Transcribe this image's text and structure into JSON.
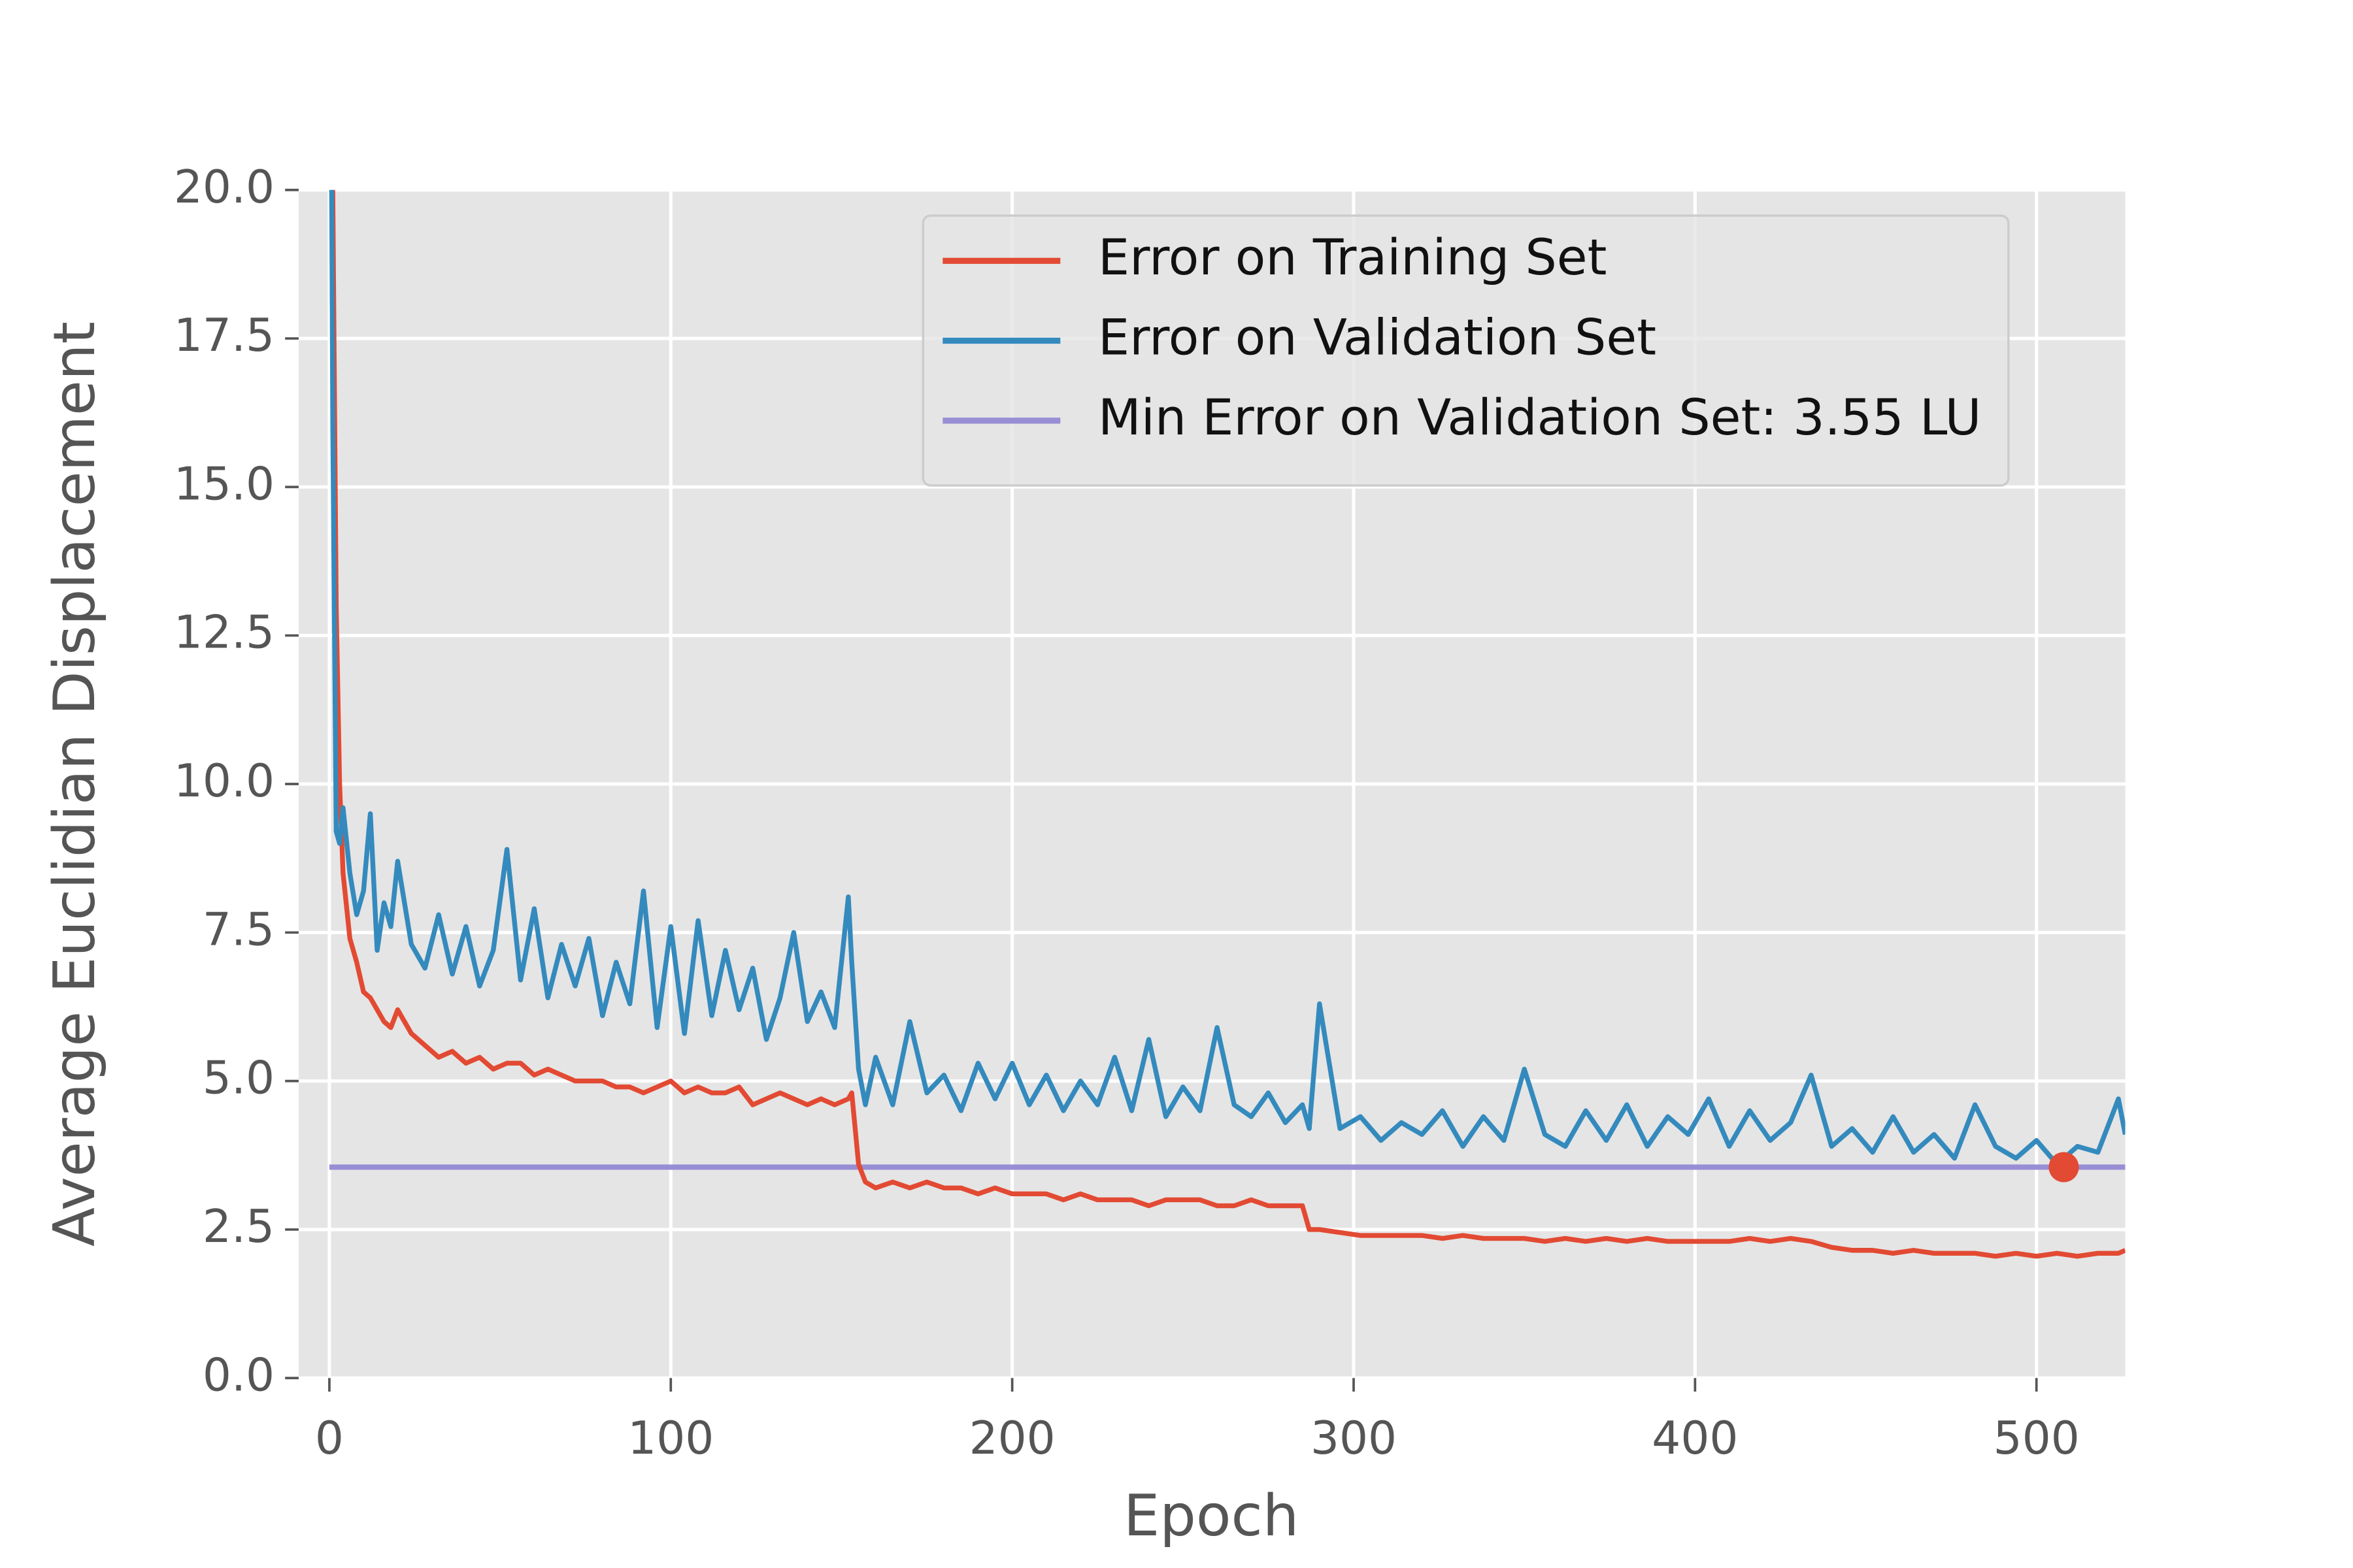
{
  "chart_data": {
    "type": "line",
    "xlabel": "Epoch",
    "ylabel": "Average Euclidian Displacement",
    "x": [
      0,
      1,
      2,
      3,
      4,
      6,
      8,
      10,
      12,
      14,
      16,
      18,
      20,
      24,
      28,
      32,
      36,
      40,
      44,
      48,
      52,
      56,
      60,
      64,
      68,
      72,
      76,
      80,
      84,
      88,
      92,
      96,
      100,
      104,
      108,
      112,
      116,
      120,
      124,
      128,
      132,
      136,
      140,
      144,
      148,
      152,
      153,
      155,
      157,
      160,
      165,
      170,
      175,
      180,
      185,
      190,
      195,
      200,
      205,
      210,
      215,
      220,
      225,
      230,
      235,
      240,
      245,
      250,
      255,
      260,
      265,
      270,
      275,
      280,
      285,
      287,
      290,
      296,
      302,
      308,
      314,
      320,
      326,
      332,
      338,
      344,
      350,
      356,
      362,
      368,
      374,
      380,
      386,
      392,
      398,
      404,
      410,
      416,
      422,
      428,
      434,
      440,
      446,
      452,
      458,
      464,
      470,
      476,
      482,
      488,
      494,
      500,
      506,
      512,
      518,
      524,
      526
    ],
    "series": [
      {
        "name": "Error on Training Set",
        "color": "#e24a33",
        "values": [
          28,
          20,
          13,
          10,
          8.5,
          7.4,
          7.0,
          6.5,
          6.4,
          6.2,
          6.0,
          5.9,
          6.2,
          5.8,
          5.6,
          5.4,
          5.5,
          5.3,
          5.4,
          5.2,
          5.3,
          5.3,
          5.1,
          5.2,
          5.1,
          5.0,
          5.0,
          5.0,
          4.9,
          4.9,
          4.8,
          4.9,
          5.0,
          4.8,
          4.9,
          4.8,
          4.8,
          4.9,
          4.6,
          4.7,
          4.8,
          4.7,
          4.6,
          4.7,
          4.6,
          4.7,
          4.8,
          3.6,
          3.3,
          3.2,
          3.3,
          3.2,
          3.3,
          3.2,
          3.2,
          3.1,
          3.2,
          3.1,
          3.1,
          3.1,
          3.0,
          3.1,
          3.0,
          3.0,
          3.0,
          2.9,
          3.0,
          3.0,
          3.0,
          2.9,
          2.9,
          3.0,
          2.9,
          2.9,
          2.9,
          2.5,
          2.5,
          2.45,
          2.4,
          2.4,
          2.4,
          2.4,
          2.35,
          2.4,
          2.35,
          2.35,
          2.35,
          2.3,
          2.35,
          2.3,
          2.35,
          2.3,
          2.35,
          2.3,
          2.3,
          2.3,
          2.3,
          2.35,
          2.3,
          2.35,
          2.3,
          2.2,
          2.15,
          2.15,
          2.1,
          2.15,
          2.1,
          2.1,
          2.1,
          2.05,
          2.1,
          2.05,
          2.1,
          2.05,
          2.1,
          2.1,
          2.15
        ]
      },
      {
        "name": "Error on Validation Set",
        "color": "#348abd",
        "values": [
          28,
          16,
          9.2,
          9.0,
          9.6,
          8.5,
          7.8,
          8.2,
          9.5,
          7.2,
          8.0,
          7.6,
          8.7,
          7.3,
          6.9,
          7.8,
          6.8,
          7.6,
          6.6,
          7.2,
          8.9,
          6.7,
          7.9,
          6.4,
          7.3,
          6.6,
          7.4,
          6.1,
          7.0,
          6.3,
          8.2,
          5.9,
          7.6,
          5.8,
          7.7,
          6.1,
          7.2,
          6.2,
          6.9,
          5.7,
          6.4,
          7.5,
          6.0,
          6.5,
          5.9,
          8.1,
          7.0,
          5.2,
          4.6,
          5.4,
          4.6,
          6.0,
          4.8,
          5.1,
          4.5,
          5.3,
          4.7,
          5.3,
          4.6,
          5.1,
          4.5,
          5.0,
          4.6,
          5.4,
          4.5,
          5.7,
          4.4,
          4.9,
          4.5,
          5.9,
          4.6,
          4.4,
          4.8,
          4.3,
          4.6,
          4.2,
          6.3,
          4.2,
          4.4,
          4.0,
          4.3,
          4.1,
          4.5,
          3.9,
          4.4,
          4.0,
          5.2,
          4.1,
          3.9,
          4.5,
          4.0,
          4.6,
          3.9,
          4.4,
          4.1,
          4.7,
          3.9,
          4.5,
          4.0,
          4.3,
          5.1,
          3.9,
          4.2,
          3.8,
          4.4,
          3.8,
          4.1,
          3.7,
          4.6,
          3.9,
          3.7,
          4.0,
          3.6,
          3.9,
          3.8,
          4.7,
          4.1
        ]
      }
    ],
    "hlines": [
      {
        "name": "Min Error on Validation Set: 3.55 LU",
        "color": "#988ed5",
        "value": 3.55
      }
    ],
    "marker": {
      "x": 508,
      "y": 3.55,
      "color": "#e24a33"
    },
    "xlim": [
      -9,
      526
    ],
    "ylim": [
      0,
      20
    ],
    "xticks": [
      0,
      100,
      200,
      300,
      400,
      500
    ],
    "yticks": [
      {
        "value": 0,
        "label": "0.0"
      },
      2.5,
      {
        "value": 5,
        "label": "5.0"
      },
      7.5,
      {
        "value": 10,
        "label": "10.0"
      },
      12.5,
      {
        "value": 15,
        "label": "15.0"
      },
      17.5,
      {
        "value": 20,
        "label": "20.0"
      }
    ],
    "grid": true,
    "legend": "upper right"
  }
}
